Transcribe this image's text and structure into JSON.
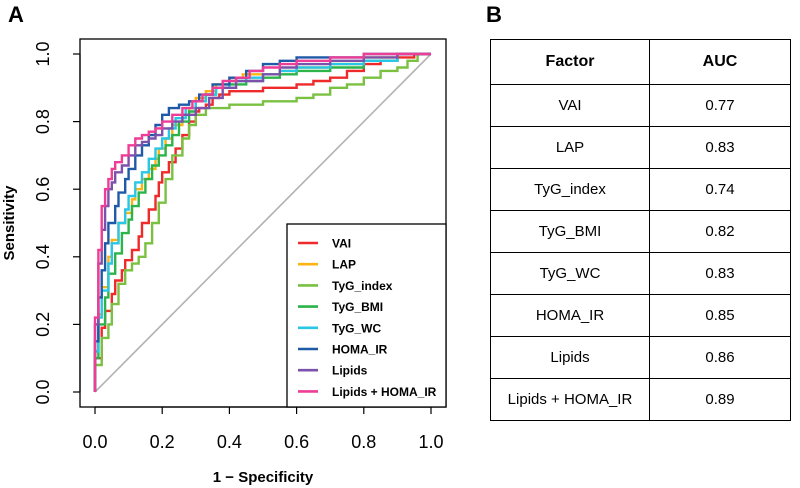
{
  "panel_a": {
    "letter": "A"
  },
  "panel_b": {
    "letter": "B",
    "table": {
      "headers": [
        "Factor",
        "AUC"
      ],
      "rows": [
        {
          "factor": "VAI",
          "auc": "0.77"
        },
        {
          "factor": "LAP",
          "auc": "0.83"
        },
        {
          "factor": "TyG_index",
          "auc": "0.74"
        },
        {
          "factor": "TyG_BMI",
          "auc": "0.82"
        },
        {
          "factor": "TyG_WC",
          "auc": "0.83"
        },
        {
          "factor": "HOMA_IR",
          "auc": "0.85"
        },
        {
          "factor": "Lipids",
          "auc": "0.86"
        },
        {
          "factor": "Lipids + HOMA_IR",
          "auc": "0.89"
        }
      ]
    }
  },
  "chart_data": {
    "type": "line",
    "title": "",
    "xlabel": "1 − Specificity",
    "ylabel": "Sensitivity",
    "xlim": [
      0.0,
      1.0
    ],
    "ylim": [
      0.0,
      1.0
    ],
    "xticks": [
      "0.0",
      "0.2",
      "0.4",
      "0.6",
      "0.8",
      "1.0"
    ],
    "yticks": [
      "0.0",
      "0.2",
      "0.4",
      "0.6",
      "0.8",
      "1.0"
    ],
    "grid": false,
    "legend_position": "bottom-right",
    "reference_line": {
      "x": [
        0,
        1
      ],
      "y": [
        0,
        1
      ],
      "color": "#b3b3b3"
    },
    "series": [
      {
        "name": "VAI",
        "color": "#ee2a2a",
        "x": [
          0,
          0.02,
          0.03,
          0.05,
          0.06,
          0.08,
          0.09,
          0.11,
          0.13,
          0.14,
          0.16,
          0.18,
          0.19,
          0.2,
          0.22,
          0.24,
          0.26,
          0.28,
          0.3,
          0.31,
          0.33,
          0.35,
          0.37,
          0.4,
          0.45,
          0.5,
          0.55,
          0.6,
          0.65,
          0.7,
          0.75,
          0.8,
          0.85,
          0.9,
          0.95,
          1.0
        ],
        "y": [
          0,
          0.1,
          0.19,
          0.24,
          0.29,
          0.33,
          0.36,
          0.39,
          0.42,
          0.46,
          0.5,
          0.54,
          0.58,
          0.62,
          0.65,
          0.68,
          0.72,
          0.76,
          0.8,
          0.83,
          0.84,
          0.85,
          0.87,
          0.88,
          0.89,
          0.89,
          0.9,
          0.9,
          0.91,
          0.92,
          0.93,
          0.95,
          0.97,
          0.98,
          0.99,
          1.0
        ]
      },
      {
        "name": "LAP",
        "color": "#fbb414",
        "x": [
          0,
          0.01,
          0.02,
          0.04,
          0.05,
          0.07,
          0.09,
          0.11,
          0.12,
          0.14,
          0.16,
          0.18,
          0.19,
          0.21,
          0.23,
          0.26,
          0.28,
          0.3,
          0.33,
          0.36,
          0.4,
          0.44,
          0.5,
          0.55,
          0.6,
          0.7,
          0.8,
          0.9,
          1.0
        ],
        "y": [
          0,
          0.12,
          0.23,
          0.31,
          0.4,
          0.45,
          0.5,
          0.53,
          0.57,
          0.6,
          0.63,
          0.66,
          0.69,
          0.72,
          0.75,
          0.79,
          0.82,
          0.84,
          0.87,
          0.89,
          0.91,
          0.93,
          0.94,
          0.94,
          0.95,
          0.96,
          0.97,
          0.99,
          1.0
        ]
      },
      {
        "name": "TyG_index",
        "color": "#7ac142",
        "x": [
          0,
          0.02,
          0.04,
          0.05,
          0.07,
          0.09,
          0.11,
          0.13,
          0.15,
          0.17,
          0.19,
          0.21,
          0.23,
          0.26,
          0.28,
          0.3,
          0.33,
          0.36,
          0.4,
          0.45,
          0.5,
          0.55,
          0.6,
          0.65,
          0.7,
          0.75,
          0.8,
          0.85,
          0.9,
          0.93,
          0.96,
          1.0
        ],
        "y": [
          0,
          0.08,
          0.16,
          0.2,
          0.26,
          0.32,
          0.36,
          0.38,
          0.4,
          0.44,
          0.5,
          0.56,
          0.63,
          0.7,
          0.75,
          0.79,
          0.82,
          0.84,
          0.84,
          0.85,
          0.85,
          0.86,
          0.86,
          0.87,
          0.88,
          0.9,
          0.91,
          0.93,
          0.95,
          0.96,
          0.98,
          1.0
        ]
      },
      {
        "name": "TyG_BMI",
        "color": "#2cb34a",
        "x": [
          0,
          0.01,
          0.03,
          0.04,
          0.06,
          0.08,
          0.1,
          0.11,
          0.13,
          0.15,
          0.17,
          0.19,
          0.21,
          0.23,
          0.25,
          0.28,
          0.3,
          0.33,
          0.36,
          0.4,
          0.45,
          0.5,
          0.55,
          0.6,
          0.7,
          0.8,
          0.9,
          1.0
        ],
        "y": [
          0,
          0.1,
          0.2,
          0.28,
          0.35,
          0.41,
          0.47,
          0.51,
          0.55,
          0.59,
          0.63,
          0.67,
          0.7,
          0.73,
          0.76,
          0.8,
          0.83,
          0.86,
          0.88,
          0.9,
          0.91,
          0.92,
          0.93,
          0.94,
          0.95,
          0.96,
          0.98,
          1.0
        ]
      },
      {
        "name": "TyG_WC",
        "color": "#29c6e6",
        "x": [
          0,
          0.01,
          0.02,
          0.04,
          0.05,
          0.07,
          0.09,
          0.1,
          0.12,
          0.14,
          0.16,
          0.18,
          0.2,
          0.22,
          0.24,
          0.27,
          0.3,
          0.33,
          0.36,
          0.4,
          0.45,
          0.5,
          0.55,
          0.6,
          0.7,
          0.8,
          0.9,
          1.0
        ],
        "y": [
          0,
          0.12,
          0.22,
          0.3,
          0.38,
          0.44,
          0.5,
          0.54,
          0.58,
          0.62,
          0.65,
          0.69,
          0.72,
          0.75,
          0.78,
          0.81,
          0.84,
          0.86,
          0.88,
          0.9,
          0.92,
          0.93,
          0.94,
          0.95,
          0.96,
          0.97,
          0.98,
          1.0
        ]
      },
      {
        "name": "HOMA_IR",
        "color": "#1e5aa8",
        "x": [
          0,
          0.01,
          0.02,
          0.03,
          0.04,
          0.06,
          0.07,
          0.09,
          0.1,
          0.12,
          0.14,
          0.16,
          0.18,
          0.2,
          0.22,
          0.25,
          0.28,
          0.31,
          0.35,
          0.4,
          0.45,
          0.5,
          0.55,
          0.6,
          0.7,
          0.8,
          0.9,
          1.0
        ],
        "y": [
          0,
          0.15,
          0.28,
          0.36,
          0.44,
          0.5,
          0.55,
          0.59,
          0.63,
          0.66,
          0.7,
          0.73,
          0.76,
          0.79,
          0.82,
          0.84,
          0.85,
          0.86,
          0.88,
          0.91,
          0.93,
          0.95,
          0.97,
          0.98,
          0.99,
          0.99,
          1.0,
          1.0
        ]
      },
      {
        "name": "Lipids",
        "color": "#7b52ab",
        "x": [
          0,
          0.01,
          0.02,
          0.03,
          0.04,
          0.05,
          0.06,
          0.08,
          0.1,
          0.12,
          0.14,
          0.16,
          0.18,
          0.2,
          0.23,
          0.26,
          0.3,
          0.34,
          0.38,
          0.42,
          0.5,
          0.55,
          0.6,
          0.7,
          0.8,
          0.9,
          1.0
        ],
        "y": [
          0,
          0.2,
          0.38,
          0.48,
          0.55,
          0.6,
          0.62,
          0.65,
          0.67,
          0.7,
          0.73,
          0.74,
          0.75,
          0.76,
          0.78,
          0.8,
          0.82,
          0.84,
          0.87,
          0.9,
          0.92,
          0.94,
          0.96,
          0.97,
          0.98,
          0.99,
          1.0
        ]
      },
      {
        "name": "Lipids + HOMA_IR",
        "color": "#ee3d96",
        "x": [
          0,
          0.01,
          0.02,
          0.03,
          0.04,
          0.05,
          0.06,
          0.08,
          0.1,
          0.12,
          0.14,
          0.16,
          0.18,
          0.2,
          0.23,
          0.26,
          0.29,
          0.32,
          0.35,
          0.38,
          0.42,
          0.46,
          0.5,
          0.55,
          0.6,
          0.7,
          0.8,
          0.9,
          1.0
        ],
        "y": [
          0,
          0.22,
          0.42,
          0.55,
          0.6,
          0.63,
          0.66,
          0.68,
          0.7,
          0.73,
          0.75,
          0.76,
          0.77,
          0.78,
          0.8,
          0.82,
          0.84,
          0.86,
          0.88,
          0.9,
          0.92,
          0.93,
          0.95,
          0.96,
          0.97,
          0.98,
          0.99,
          1.0,
          1.0
        ]
      }
    ]
  }
}
